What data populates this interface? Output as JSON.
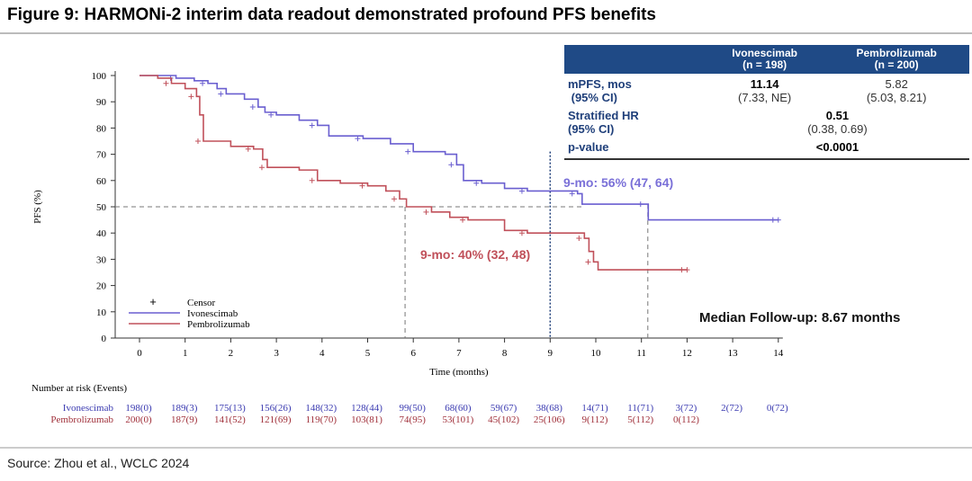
{
  "title": "Figure 9: HARMONi-2 interim data readout demonstrated profound PFS benefits",
  "source": "Source: Zhou et al., WCLC 2024",
  "table": {
    "headers": [
      {
        "name": "Ivonescimab",
        "n": "(n = 198)"
      },
      {
        "name": "Pembrolizumab",
        "n": "(n = 200)"
      }
    ],
    "mpfs_label": "mPFS, mos",
    "ci_label": "(95% CI)",
    "mpfs_ivo": "11.14",
    "mpfs_ivo_ci": "(7.33, NE)",
    "mpfs_pem": "5.82",
    "mpfs_pem_ci": "(5.03, 8.21)",
    "hr_label": "Stratified HR",
    "hr_ci_label": "(95% CI)",
    "hr": "0.51",
    "hr_ci": "(0.38, 0.69)",
    "p_label": "p-value",
    "p": "<0.0001"
  },
  "chart_data": {
    "type": "line",
    "xlabel": "Time (months)",
    "ylabel": "PFS (%)",
    "xlim": [
      0,
      14
    ],
    "ylim": [
      0,
      100
    ],
    "xticks": [
      "0",
      "1",
      "2",
      "3",
      "4",
      "5",
      "6",
      "7",
      "8",
      "9",
      "10",
      "11",
      "12",
      "13",
      "14"
    ],
    "yticks": [
      "0",
      "10",
      "20",
      "30",
      "40",
      "50",
      "60",
      "70",
      "80",
      "90",
      "100"
    ],
    "legend": {
      "censor": "Censor",
      "placement": "bottom-left"
    },
    "series": [
      {
        "name": "Ivonescimab",
        "color": "#6a5fd0",
        "points": [
          [
            0,
            100
          ],
          [
            0.5,
            100
          ],
          [
            0.8,
            99
          ],
          [
            1.2,
            98
          ],
          [
            1.5,
            97
          ],
          [
            1.7,
            95
          ],
          [
            1.9,
            93
          ],
          [
            2.3,
            91
          ],
          [
            2.6,
            88
          ],
          [
            2.75,
            86
          ],
          [
            3,
            85
          ],
          [
            3.5,
            83
          ],
          [
            3.9,
            81
          ],
          [
            4.15,
            77
          ],
          [
            4.9,
            76
          ],
          [
            5.5,
            74
          ],
          [
            6,
            71
          ],
          [
            6.7,
            70
          ],
          [
            6.95,
            66
          ],
          [
            7.1,
            60
          ],
          [
            7.5,
            59
          ],
          [
            8,
            57
          ],
          [
            8.5,
            56
          ],
          [
            9.4,
            56
          ],
          [
            9.6,
            55
          ],
          [
            9.7,
            51
          ],
          [
            11.1,
            51
          ],
          [
            11.15,
            45
          ],
          [
            14,
            45
          ]
        ]
      },
      {
        "name": "Pembrolizumab",
        "color": "#c0505a",
        "points": [
          [
            0,
            100
          ],
          [
            0.4,
            99
          ],
          [
            0.7,
            97
          ],
          [
            1,
            95
          ],
          [
            1.25,
            92
          ],
          [
            1.32,
            85
          ],
          [
            1.4,
            75
          ],
          [
            2,
            73
          ],
          [
            2.5,
            72
          ],
          [
            2.7,
            68
          ],
          [
            2.8,
            65
          ],
          [
            3.5,
            64
          ],
          [
            3.9,
            60
          ],
          [
            4.4,
            59
          ],
          [
            5,
            58
          ],
          [
            5.4,
            56
          ],
          [
            5.7,
            53
          ],
          [
            5.85,
            50
          ],
          [
            6.4,
            48
          ],
          [
            6.8,
            46
          ],
          [
            7.2,
            45
          ],
          [
            8,
            41
          ],
          [
            8.5,
            40
          ],
          [
            9.6,
            40
          ],
          [
            9.75,
            38
          ],
          [
            9.85,
            33
          ],
          [
            9.95,
            29
          ],
          [
            10.05,
            26
          ],
          [
            12,
            26
          ]
        ]
      }
    ],
    "annotations": {
      "ivo_9mo": "9-mo: 56% (47, 64)",
      "pem_9mo": "9-mo: 40% (32, 48)",
      "followup": "Median Follow-up: 8.67 months"
    },
    "risk_table": {
      "title": "Number at risk (Events)",
      "Ivonescimab": [
        "198(0)",
        "189(3)",
        "175(13)",
        "156(26)",
        "148(32)",
        "128(44)",
        "99(50)",
        "68(60)",
        "59(67)",
        "38(68)",
        "14(71)",
        "11(71)",
        "3(72)",
        "2(72)",
        "0(72)"
      ],
      "Pembrolizumab": [
        "200(0)",
        "187(9)",
        "141(52)",
        "121(69)",
        "119(70)",
        "103(81)",
        "74(95)",
        "53(101)",
        "45(102)",
        "25(106)",
        "9(112)",
        "5(112)",
        "0(112)"
      ]
    }
  }
}
